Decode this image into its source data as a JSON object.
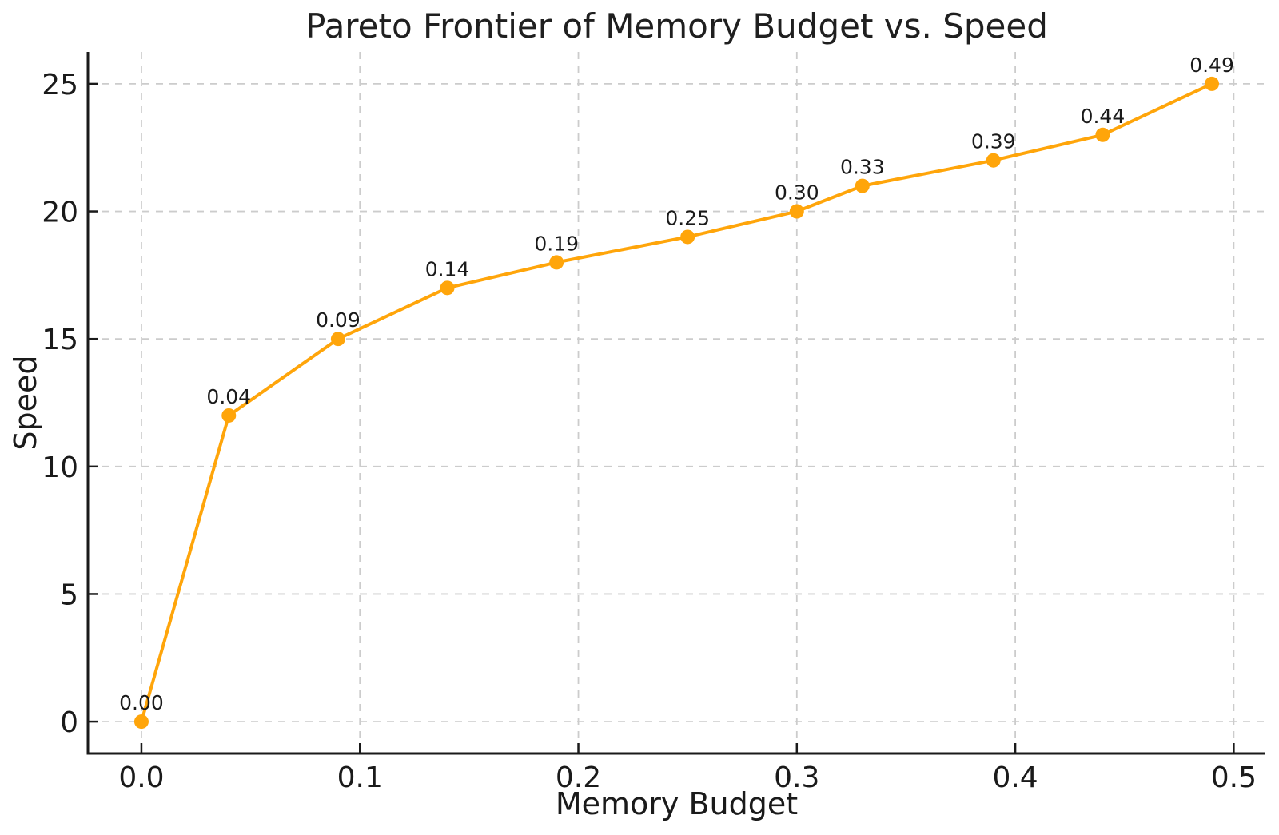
{
  "chart_data": {
    "type": "line",
    "title": "Pareto Frontier of Memory Budget vs. Speed",
    "xlabel": "Memory Budget",
    "ylabel": "Speed",
    "series": [
      {
        "name": "pareto-frontier",
        "x": [
          0.0,
          0.04,
          0.09,
          0.14,
          0.19,
          0.25,
          0.3,
          0.33,
          0.39,
          0.44,
          0.49
        ],
        "y": [
          0,
          12,
          15,
          17,
          18,
          19,
          20,
          21,
          22,
          23,
          25
        ],
        "point_labels": [
          "0.00",
          "0.04",
          "0.09",
          "0.14",
          "0.19",
          "0.25",
          "0.30",
          "0.33",
          "0.39",
          "0.44",
          "0.49"
        ],
        "color": "#ffa50a",
        "marker": "circle"
      }
    ],
    "x_ticks": [
      0,
      0.1,
      0.2,
      0.3,
      0.4,
      0.5
    ],
    "x_tick_labels": [
      "0.0",
      "0.1",
      "0.2",
      "0.3",
      "0.4",
      "0.5"
    ],
    "y_ticks": [
      0,
      5,
      10,
      15,
      20,
      25
    ],
    "y_tick_labels": [
      "0",
      "5",
      "10",
      "15",
      "20",
      "25"
    ],
    "xlim": [
      -0.0245,
      0.5145
    ],
    "ylim": [
      -1.25,
      26.25
    ],
    "grid": true,
    "grid_style": "dashed",
    "legend": "none",
    "colors": {
      "line": "#ffa50a",
      "grid": "#cccccc",
      "axis": "#1a1a1a",
      "text": "#1a1a1a",
      "background": "#ffffff"
    }
  }
}
